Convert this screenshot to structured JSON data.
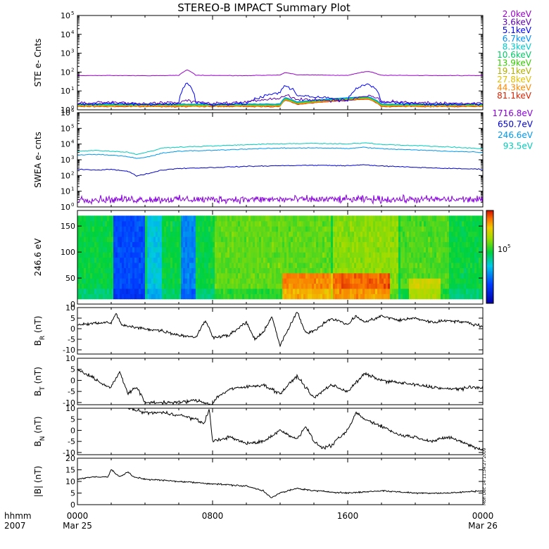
{
  "title": "STEREO-B IMPACT Summary Plot",
  "stamp": "Mon Dec 14 11:34:27 2009",
  "time_axis": {
    "corner_top": "hhmm",
    "corner_bottom": "2007",
    "ticks": [
      {
        "hour": 0,
        "label": "0000",
        "date": "Mar 25"
      },
      {
        "hour": 8,
        "label": "0800",
        "date": ""
      },
      {
        "hour": 16,
        "label": "1600",
        "date": ""
      },
      {
        "hour": 24,
        "label": "0000",
        "date": "Mar 26"
      }
    ]
  },
  "legend_ste": [
    {
      "label": "2.0keV",
      "color": "#9900cc"
    },
    {
      "label": "3.6keV",
      "color": "#5b00b0"
    },
    {
      "label": "5.1keV",
      "color": "#0000ff"
    },
    {
      "label": "6.7keV",
      "color": "#0090ff"
    },
    {
      "label": "8.3keV",
      "color": "#00cccc"
    },
    {
      "label": "10.6keV",
      "color": "#00cc66"
    },
    {
      "label": "13.9keV",
      "color": "#33cc00"
    },
    {
      "label": "19.1keV",
      "color": "#b0b000"
    },
    {
      "label": "27.8keV",
      "color": "#e0c000"
    },
    {
      "label": "44.3keV",
      "color": "#ff8800"
    },
    {
      "label": "81.1keV",
      "color": "#dd2200"
    }
  ],
  "legend_swea": [
    {
      "label": "1716.8eV",
      "color": "#8800dd"
    },
    {
      "label": "650.7eV",
      "color": "#0000cc"
    },
    {
      "label": "246.6eV",
      "color": "#0099ee"
    },
    {
      "label": "93.5eV",
      "color": "#00ccbb"
    }
  ],
  "panels": {
    "ste": {
      "ylabel": "STE e- Cnts",
      "log": true,
      "ylim": [
        1,
        100000
      ]
    },
    "swea": {
      "ylabel": "SWEA e- cnts",
      "log": true,
      "ylim": [
        1,
        1000000
      ]
    },
    "pad": {
      "ylabel": "246.6 eV",
      "ylim": [
        0,
        180
      ],
      "yticks": [
        0,
        50,
        100,
        150
      ],
      "colorbar_label": "10",
      "colorbar_exp": "5"
    },
    "br": {
      "ylabel": "B",
      "sub": "R",
      "unit": " (nT)",
      "ylim": [
        -12,
        10
      ],
      "yticks": [
        -10,
        -5,
        0,
        5,
        10
      ]
    },
    "bt": {
      "ylabel": "B",
      "sub": "T",
      "unit": " (nT)",
      "ylim": [
        -11,
        10
      ],
      "yticks": [
        -10,
        -5,
        0,
        5,
        10
      ]
    },
    "bn": {
      "ylabel": "B",
      "sub": "N",
      "unit": " (nT)",
      "ylim": [
        -11,
        10
      ],
      "yticks": [
        -10,
        -5,
        0,
        5,
        10
      ]
    },
    "bmag": {
      "ylabel": "|B| (nT)",
      "ylim": [
        0,
        20
      ],
      "yticks": [
        0,
        5,
        10,
        15,
        20
      ]
    }
  },
  "chart_data": [
    {
      "type": "line",
      "panel": "STE e- Cnts",
      "x_hours": [
        0,
        2,
        4,
        6,
        6.5,
        7,
        8,
        10,
        12,
        12.3,
        13,
        16,
        17.2,
        18,
        20,
        22,
        24
      ],
      "series": [
        {
          "name": "2.0keV",
          "values": [
            65,
            66,
            64,
            67,
            130,
            68,
            66,
            65,
            70,
            95,
            72,
            66,
            110,
            68,
            66,
            65,
            66
          ]
        },
        {
          "name": "3.6keV",
          "values": [
            2.2,
            2.5,
            2.2,
            2.4,
            3,
            2.6,
            2.2,
            2.4,
            4.5,
            6,
            3.5,
            3,
            6,
            2.8,
            2.4,
            2.2,
            2.3
          ]
        },
        {
          "name": "5.1keV",
          "values": [
            1.8,
            2.2,
            1.9,
            2.1,
            25,
            2.5,
            1.9,
            2.1,
            8,
            20,
            6,
            3,
            25,
            2.5,
            2.1,
            1.9,
            2.0
          ]
        }
      ]
    },
    {
      "type": "line",
      "panel": "SWEA e- cnts",
      "x_hours": [
        0,
        1,
        2,
        3,
        3.5,
        4,
        4.5,
        5,
        6,
        8,
        10,
        12,
        14,
        16,
        17,
        18,
        20,
        22,
        24
      ],
      "series": [
        {
          "name": "1716.8eV",
          "values": [
            3,
            3,
            3,
            3,
            3,
            3,
            3,
            3,
            3,
            3,
            3,
            3,
            3,
            3,
            3,
            3,
            3,
            3,
            3
          ]
        },
        {
          "name": "650.7eV",
          "values": [
            250,
            220,
            250,
            180,
            90,
            120,
            160,
            220,
            280,
            320,
            380,
            420,
            450,
            420,
            480,
            400,
            330,
            280,
            250
          ]
        },
        {
          "name": "246.6eV",
          "values": [
            2000,
            2200,
            2000,
            1600,
            1200,
            1400,
            1800,
            2600,
            3500,
            4000,
            4800,
            5500,
            5800,
            5200,
            6200,
            5000,
            4200,
            3500,
            3000
          ]
        },
        {
          "name": "93.5eV",
          "values": [
            3500,
            4000,
            3500,
            3000,
            2200,
            2800,
            3800,
            5500,
            6500,
            7500,
            9000,
            10500,
            11000,
            10000,
            12000,
            9500,
            8000,
            6500,
            5000
          ]
        }
      ]
    },
    {
      "type": "heatmap",
      "panel": "246.6 eV",
      "y_range": [
        10,
        170
      ],
      "colorbar_value": "10^5"
    },
    {
      "type": "line",
      "panel": "BR (nT)",
      "x_hours": [
        0,
        1,
        2,
        2.3,
        2.6,
        3,
        4,
        5,
        6,
        7,
        7.6,
        8,
        9,
        10,
        10.5,
        11,
        11.5,
        12,
        12.5,
        13,
        13.5,
        14,
        15,
        16,
        16.5,
        17,
        18,
        19,
        20,
        21,
        22,
        23,
        24
      ],
      "series": [
        {
          "values": [
            2,
            2.5,
            3,
            7,
            2,
            1,
            0,
            -1,
            -3,
            -4,
            4,
            -4,
            -3,
            3,
            -5,
            -2,
            6,
            -8,
            0,
            8,
            -2,
            -1,
            5,
            2,
            6,
            3,
            6,
            4,
            5,
            3,
            4,
            3,
            1
          ]
        }
      ]
    },
    {
      "type": "line",
      "panel": "BT (nT)",
      "x_hours": [
        0,
        1,
        1.5,
        2,
        2.5,
        3,
        3.5,
        4,
        6,
        7,
        8,
        8.2,
        9,
        10,
        11,
        12,
        13,
        14,
        15,
        16,
        17,
        18,
        20,
        22,
        24
      ],
      "series": [
        {
          "values": [
            5,
            1,
            -2,
            -3,
            4,
            -6,
            -3,
            -10,
            -10,
            -9,
            -11,
            -8,
            -4,
            -3,
            -2,
            -6,
            2,
            -8,
            -2,
            -5,
            3,
            0,
            -2,
            -4,
            -3
          ]
        }
      ]
    },
    {
      "type": "line",
      "panel": "BN (nT)",
      "x_hours": [
        3,
        4,
        5,
        6,
        7,
        7.5,
        7.8,
        8,
        9,
        10,
        11,
        12,
        13,
        13.5,
        14,
        14.5,
        15,
        16,
        16.5,
        17,
        18,
        19,
        20,
        21,
        22,
        23,
        24
      ],
      "series": [
        {
          "values": [
            10,
            8,
            8,
            7,
            5,
            3,
            10,
            -5,
            -3,
            -6,
            -5,
            0,
            -4,
            2,
            -5,
            -8,
            -7,
            0,
            8,
            5,
            2,
            -2,
            -3,
            -5,
            -3,
            -6,
            -9
          ]
        }
      ]
    },
    {
      "type": "line",
      "panel": "|B| (nT)",
      "x_hours": [
        0,
        1,
        1.8,
        2,
        2.5,
        3,
        3.3,
        4,
        6,
        8,
        10,
        11,
        11.5,
        12,
        13,
        14,
        16,
        18,
        20,
        22,
        24
      ],
      "series": [
        {
          "values": [
            11,
            12,
            12,
            15,
            12,
            14,
            12,
            11,
            10,
            9,
            8,
            6,
            3,
            5,
            7,
            6,
            5,
            6,
            5,
            5,
            6
          ]
        }
      ]
    }
  ]
}
